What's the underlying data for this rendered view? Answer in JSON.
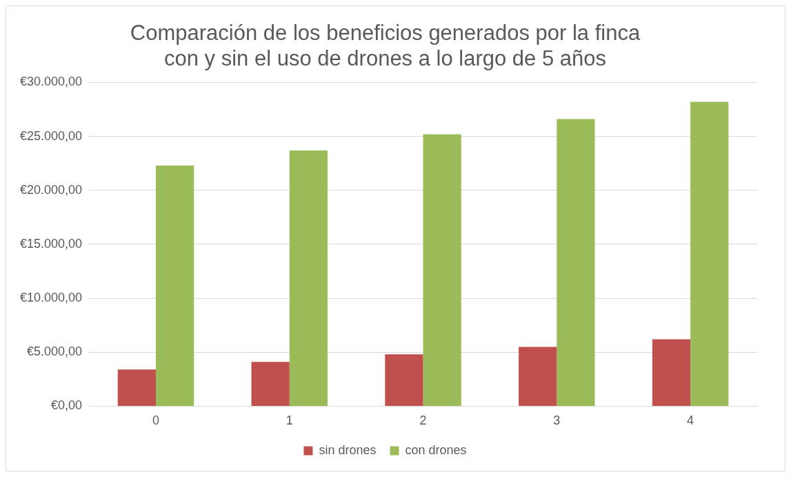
{
  "chart_data": {
    "type": "bar",
    "title": "Comparación de los beneficios generados por la finca con y sin el uso de drones a lo largo de 5 años",
    "categories": [
      "0",
      "1",
      "2",
      "3",
      "4"
    ],
    "series": [
      {
        "name": "sin drones",
        "color": "#c0504d",
        "values": [
          3400,
          4100,
          4800,
          5500,
          6200
        ]
      },
      {
        "name": "con drones",
        "color": "#9bbb59",
        "values": [
          22300,
          23700,
          25200,
          26600,
          28200
        ]
      }
    ],
    "ylim": [
      0,
      30000
    ],
    "yticks": [
      {
        "value": 0,
        "label": "€0,00"
      },
      {
        "value": 5000,
        "label": "€5.000,00"
      },
      {
        "value": 10000,
        "label": "€10.000,00"
      },
      {
        "value": 15000,
        "label": "€15.000,00"
      },
      {
        "value": 20000,
        "label": "€20.000,00"
      },
      {
        "value": 25000,
        "label": "€25.000,00"
      },
      {
        "value": 30000,
        "label": "€30.000,00"
      }
    ],
    "grid": "y",
    "legend": "bottom"
  }
}
